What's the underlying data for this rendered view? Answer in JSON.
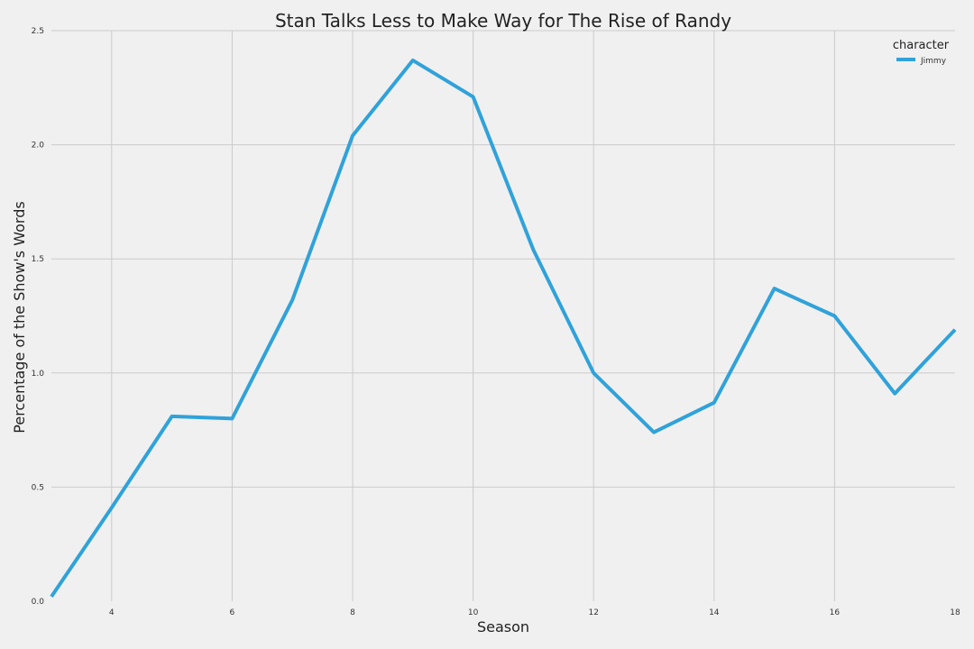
{
  "chart_data": {
    "type": "line",
    "title": "Stan Talks Less to Make Way for The Rise of Randy",
    "xlabel": "Season",
    "ylabel": "Percentage of the Show's Words",
    "xlim": [
      3,
      18
    ],
    "ylim": [
      0,
      2.5
    ],
    "xticks": [
      4,
      6,
      8,
      10,
      12,
      14,
      16,
      18
    ],
    "yticks": [
      0.0,
      0.5,
      1.0,
      1.5,
      2.0,
      2.5
    ],
    "xtick_labels": [
      "4",
      "6",
      "8",
      "10",
      "12",
      "14",
      "16",
      "18"
    ],
    "ytick_labels": [
      "0.0",
      "0.5",
      "1.0",
      "1.5",
      "2.0",
      "2.5"
    ],
    "grid": true,
    "legend": {
      "title": "character",
      "placement": "top-right"
    },
    "series": [
      {
        "name": "Jimmy",
        "color": "#30a2da",
        "x": [
          3,
          4,
          5,
          6,
          7,
          8,
          9,
          10,
          11,
          12,
          13,
          14,
          15,
          16,
          17,
          18
        ],
        "y": [
          0.02,
          0.41,
          0.81,
          0.8,
          1.32,
          2.04,
          2.37,
          2.21,
          1.54,
          1.0,
          0.74,
          0.87,
          1.37,
          1.25,
          0.91,
          1.19
        ]
      }
    ]
  }
}
